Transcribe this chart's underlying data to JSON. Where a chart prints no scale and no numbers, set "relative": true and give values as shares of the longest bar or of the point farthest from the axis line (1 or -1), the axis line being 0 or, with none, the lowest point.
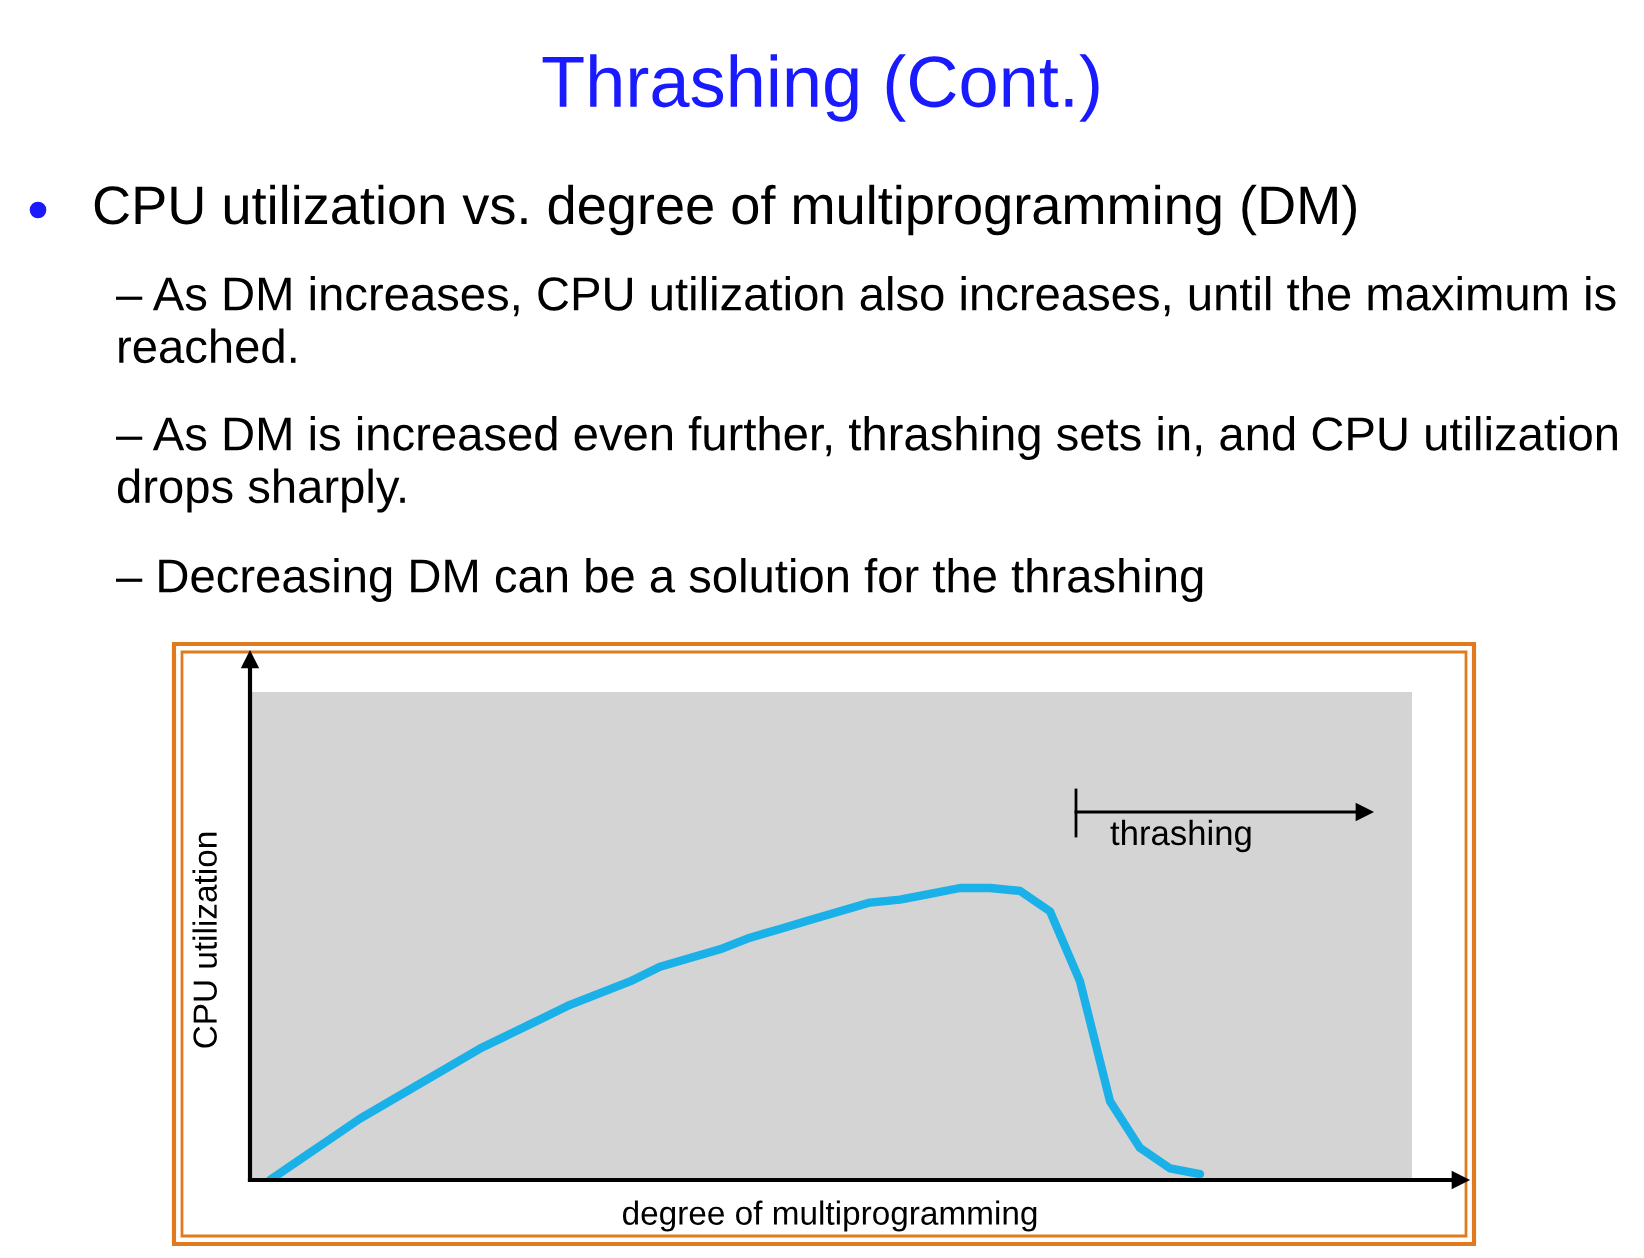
{
  "chart_data": {
    "type": "line",
    "relative": true,
    "title": "Thrashing (Cont.)",
    "subtitle": "CPU utilization vs. degree of multiprogramming (DM)",
    "xlabel": "degree of multiprogramming",
    "ylabel": "CPU utilization",
    "annotations": [
      "– As DM increases, CPU utilization also increases, until the maximum is reached.",
      "– As DM is increased even further, thrashing sets in, and CPU utilization drops sharply.",
      "– Decreasing DM can be a solution for the thrashing",
      "thrashing"
    ],
    "categories": [
      null,
      null,
      null,
      null,
      null,
      null,
      null,
      null,
      null,
      null,
      null,
      null,
      null,
      null,
      null,
      null,
      null,
      null,
      null,
      null,
      null,
      null,
      null,
      null,
      null,
      null,
      null,
      null,
      null,
      null,
      null,
      null
    ],
    "series": [
      {
        "color": "#1ab0e8",
        "values": [
          0,
          0.07,
          0.14,
          0.21,
          0.27,
          0.33,
          0.39,
          0.45,
          0.5,
          0.55,
          0.6,
          0.64,
          0.68,
          0.73,
          0.76,
          0.79,
          0.83,
          0.86,
          0.89,
          0.92,
          0.95,
          0.96,
          0.98,
          1.0,
          1.0,
          0.99,
          0.92,
          0.68,
          0.27,
          0.11,
          0.04,
          0.02
        ]
      }
    ],
    "grid": false,
    "marker": "none",
    "line_style": "solid"
  }
}
